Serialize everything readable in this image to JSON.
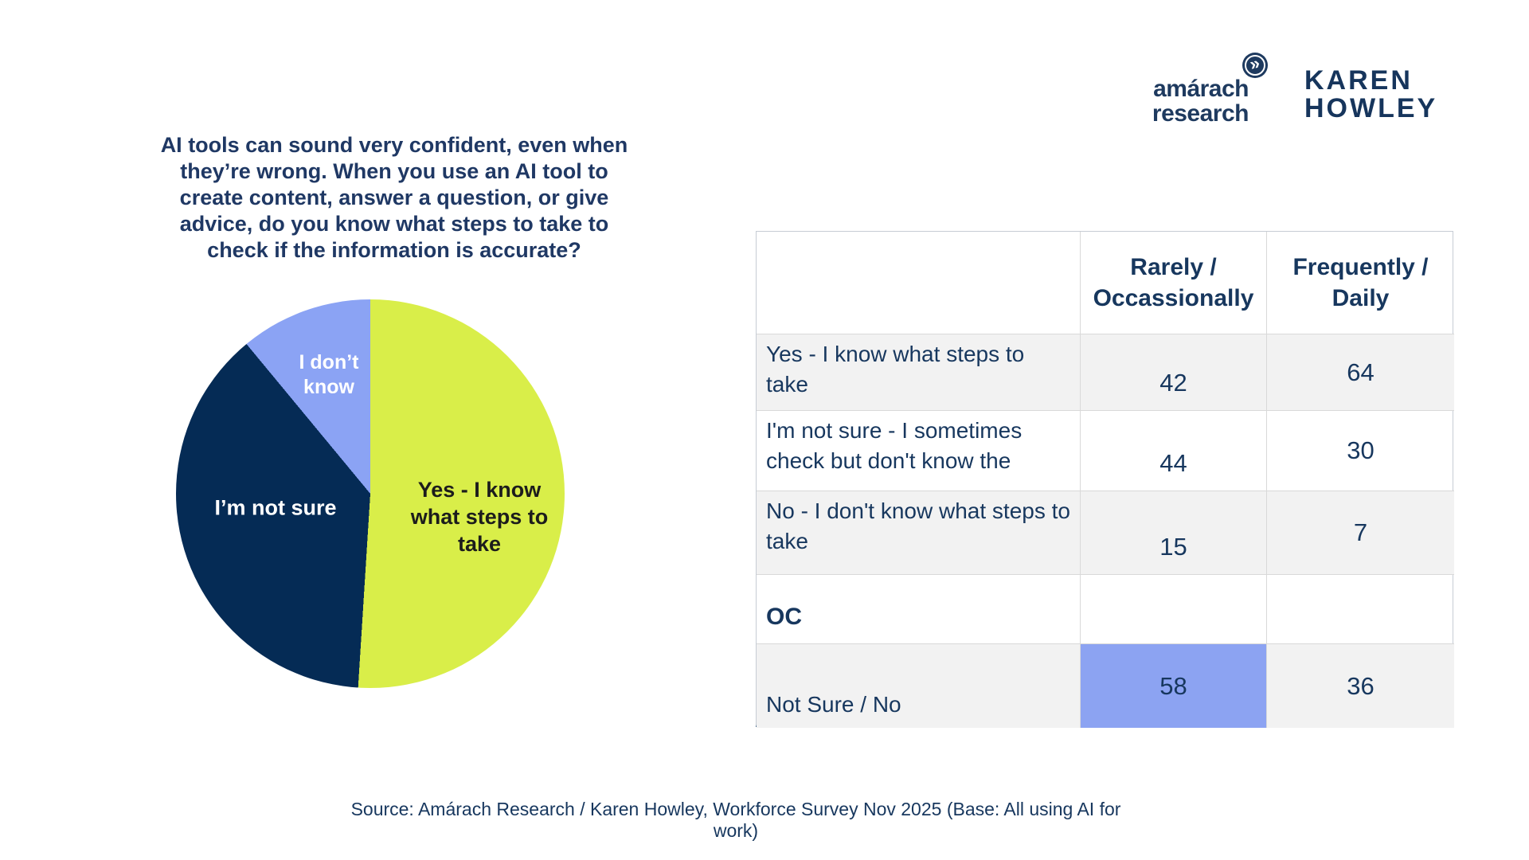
{
  "header": {
    "title_lines": [
      "AI tools can sound very confident, even when",
      "they’re wrong. When you use an AI tool to",
      "create content, answer a question, or give",
      "advice, do you know what steps to take to",
      "check if the information is accurate?"
    ]
  },
  "logos": {
    "amarach_line1": "amárach",
    "amarach_line2": "research",
    "chevron_glyph": "»",
    "karen_line1": "KAREN",
    "karen_line2": "HOWLEY"
  },
  "pie_display": {
    "label_yes": "Yes - I know\nwhat steps to\ntake",
    "label_not_sure": "I’m not sure",
    "label_dont_know": "I don’t\nknow"
  },
  "colors": {
    "navy_text": "#17375E",
    "title_navy": "#1F3864",
    "pie_yellow": "#D9EE49",
    "pie_navy": "#052B55",
    "pie_periwinkle": "#8BA3F4",
    "highlight_cell": "#8CA3F2",
    "row_stripe": "#F2F2F2",
    "table_border": "#D9D9D9"
  },
  "source": {
    "text": "Source: Amárach Research / Karen Howley, Workforce Survey Nov 2025 (Base: All using AI for work)"
  },
  "chart_data": [
    {
      "type": "pie",
      "title": "AI tools can sound very confident, even when they’re wrong. When you use an AI tool to create content, answer a question, or give advice, do you know what steps to take to check if the information is accurate?",
      "labels": [
        "Yes - I know what steps to take",
        "I’m not sure",
        "I don’t know"
      ],
      "values": [
        51,
        38,
        11
      ],
      "unit": "percent (estimated from slice angles; no numeric labels shown)",
      "colors": [
        "#D9EE49",
        "#052B55",
        "#8BA3F4"
      ],
      "start_angle_deg": 0,
      "direction": "clockwise",
      "legend_position": "labels-inside-slices"
    },
    {
      "type": "table",
      "columns": [
        "",
        "Rarely / Occassionally",
        "Frequently / Daily"
      ],
      "rows": [
        {
          "label": "Yes - I know what steps to take",
          "rarely": 42,
          "frequently": 64
        },
        {
          "label": "I'm not sure - I sometimes check but don't know the",
          "rarely": 44,
          "frequently": 30
        },
        {
          "label": "No - I don't know what steps to take",
          "rarely": 15,
          "frequently": 7
        },
        {
          "label": "OC",
          "rarely": null,
          "frequently": null
        },
        {
          "label": "Not Sure / No",
          "rarely": 58,
          "frequently": 36
        }
      ],
      "highlighted_cell": {
        "row": "Not Sure / No",
        "column": "Rarely / Occassionally",
        "value": 58,
        "color": "#8CA3F2"
      }
    }
  ]
}
